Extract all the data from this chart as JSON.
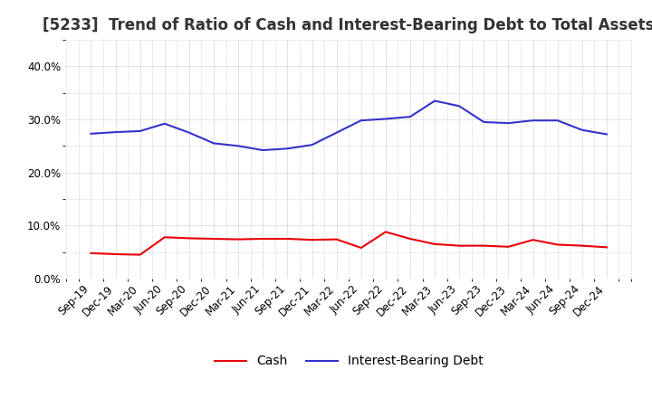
{
  "title": "[5233]  Trend of Ratio of Cash and Interest-Bearing Debt to Total Assets",
  "x_labels": [
    "Sep-19",
    "Dec-19",
    "Mar-20",
    "Jun-20",
    "Sep-20",
    "Dec-20",
    "Mar-21",
    "Jun-21",
    "Sep-21",
    "Dec-21",
    "Mar-22",
    "Jun-22",
    "Sep-22",
    "Dec-22",
    "Mar-23",
    "Jun-23",
    "Sep-23",
    "Dec-23",
    "Mar-24",
    "Jun-24",
    "Sep-24",
    "Dec-24"
  ],
  "cash": [
    4.8,
    4.6,
    4.5,
    7.8,
    7.6,
    7.5,
    7.4,
    7.5,
    7.5,
    7.3,
    7.4,
    5.8,
    8.8,
    7.5,
    6.5,
    6.2,
    6.2,
    6.0,
    7.3,
    6.4,
    6.2,
    5.9
  ],
  "ibd": [
    27.3,
    27.6,
    27.8,
    29.2,
    27.5,
    25.5,
    25.0,
    24.2,
    24.5,
    25.2,
    27.5,
    29.8,
    30.1,
    30.5,
    33.5,
    32.5,
    29.5,
    29.3,
    29.8,
    29.8,
    28.0,
    27.2
  ],
  "cash_color": "#E8000A",
  "ibd_color": "#3333CC",
  "ylim": [
    0.0,
    45.0
  ],
  "yticks": [
    0.0,
    10.0,
    20.0,
    30.0,
    40.0
  ],
  "grid_color": "#AAAAAA",
  "background_color": "#FFFFFF",
  "title_fontsize": 12,
  "tick_fontsize": 8.5,
  "legend_fontsize": 10
}
